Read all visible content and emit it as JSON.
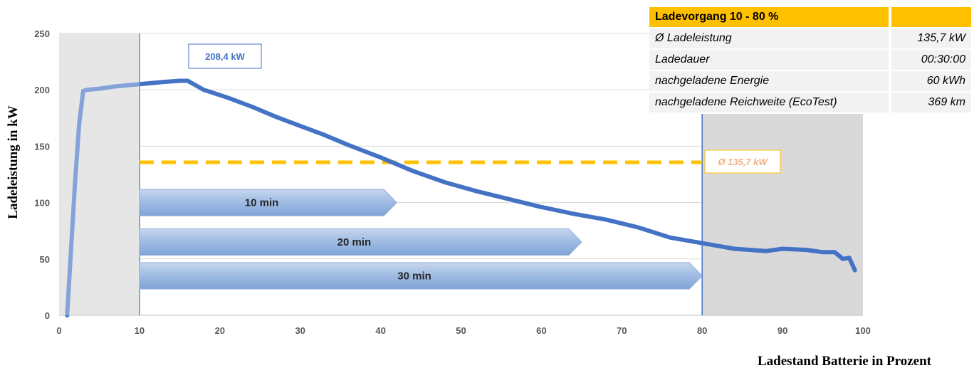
{
  "chart_data": {
    "type": "line",
    "xlabel": "Ladestand Batterie in Prozent",
    "ylabel": "Ladeleistung in kW",
    "xlim": [
      0,
      100
    ],
    "ylim": [
      0,
      250
    ],
    "xticks": [
      0,
      10,
      20,
      30,
      40,
      50,
      60,
      70,
      80,
      90,
      100
    ],
    "yticks": [
      0,
      50,
      100,
      150,
      200,
      250
    ],
    "grid": "horizontal",
    "shaded_regions": [
      [
        0,
        10
      ],
      [
        80,
        100
      ]
    ],
    "vertical_lines": [
      10,
      80
    ],
    "series": [
      {
        "color": "#4472c4",
        "x": [
          1,
          1.5,
          2,
          2.5,
          3,
          3.5,
          5,
          7,
          10,
          13,
          15,
          16,
          18,
          21,
          24,
          27,
          30,
          33,
          36,
          40,
          44,
          48,
          52,
          56,
          60,
          64,
          68,
          72,
          76,
          80,
          84,
          88,
          90,
          93,
          95,
          96.5,
          97.5,
          98.3,
          99
        ],
        "y": [
          0,
          60,
          120,
          170,
          199,
          200,
          201,
          203,
          205,
          207,
          208,
          208,
          200,
          193,
          185,
          176,
          168,
          160,
          151,
          140,
          128,
          118,
          110,
          103,
          96,
          90,
          85,
          78,
          69,
          64,
          59,
          57,
          59,
          58,
          56,
          56,
          50,
          51,
          40
        ]
      }
    ],
    "average_line": {
      "value": 135.7,
      "from": 10,
      "to": 80,
      "color": "#ffc000",
      "label": "Ø 135,7 kW"
    },
    "peak_annotation": {
      "label": "208,4 kW"
    },
    "duration_arrows": [
      {
        "label": "10 min",
        "from": 10,
        "to": 42
      },
      {
        "label": "20 min",
        "from": 10,
        "to": 65
      },
      {
        "label": "30 min",
        "from": 10,
        "to": 80
      }
    ]
  },
  "summary_table": {
    "header": "Ladevorgang 10 - 80 %",
    "rows": [
      {
        "label": "Ø Ladeleistung",
        "value": "135,7 kW"
      },
      {
        "label": "Ladedauer",
        "value": "00:30:00"
      },
      {
        "label": "nachgeladene Energie",
        "value": "60 kWh"
      },
      {
        "label": "nachgeladene Reichweite (EcoTest)",
        "value": "369 km"
      }
    ]
  }
}
